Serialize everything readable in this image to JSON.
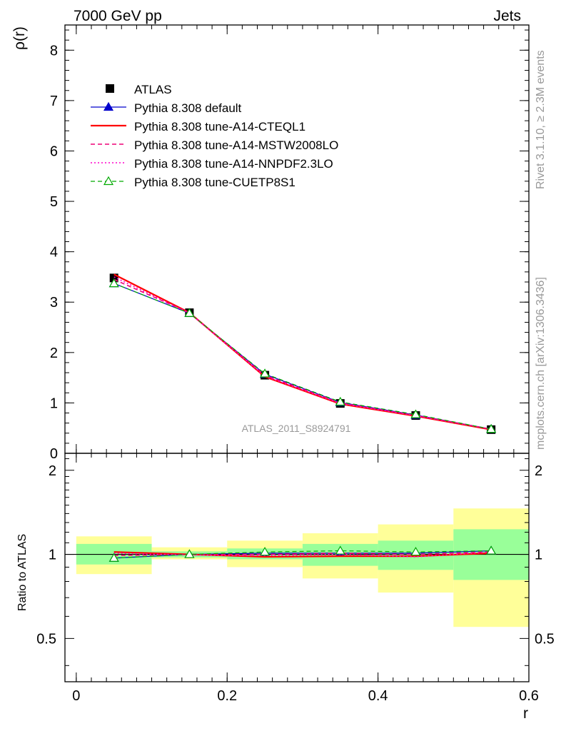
{
  "header": {
    "left_title": "7000 GeV pp",
    "right_title": "Jets"
  },
  "side_labels": {
    "rivet": "Rivet 3.1.10, ≥ 2.3M events",
    "mcplots": "mcplots.cern.ch [arXiv:1306.3436]"
  },
  "analysis_id": "ATLAS_2011_S8924791",
  "chart_data": [
    {
      "type": "line",
      "panel": "main",
      "ylabel": "ρ(r)",
      "ylim": [
        0,
        8.5
      ],
      "y_ticks": [
        0,
        1,
        2,
        3,
        4,
        5,
        6,
        7,
        8
      ],
      "y_tick_labels": [
        "0",
        "1",
        "2",
        "3",
        "4",
        "5",
        "6",
        "7",
        "8"
      ],
      "xlim": [
        -0.015,
        0.6
      ],
      "legend_position": "top-left",
      "x": [
        0.05,
        0.15,
        0.25,
        0.35,
        0.45,
        0.55
      ],
      "data": {
        "name": "ATLAS",
        "color": "#000000",
        "marker": "filled-square",
        "y": [
          3.48,
          2.79,
          1.55,
          0.99,
          0.75,
          0.47
        ]
      },
      "series": [
        {
          "name": "Pythia 8.308 default",
          "color": "#0000cc",
          "style": "solid",
          "width": 1.2,
          "marker": "filled-triangle",
          "y": [
            3.37,
            2.78,
            1.57,
            1.01,
            0.76,
            0.48
          ]
        },
        {
          "name": "Pythia 8.308 tune-A14-CTEQL1",
          "color": "#ff0000",
          "style": "solid",
          "width": 2.2,
          "marker": "none",
          "y": [
            3.55,
            2.79,
            1.52,
            0.98,
            0.74,
            0.47
          ]
        },
        {
          "name": "Pythia 8.308 tune-A14-MSTW2008LO",
          "color": "#ee0077",
          "style": "dashed",
          "width": 1.6,
          "marker": "none",
          "y": [
            3.45,
            2.79,
            1.55,
            1.0,
            0.75,
            0.48
          ]
        },
        {
          "name": "Pythia 8.308 tune-A14-NNPDF2.3LO",
          "color": "#ff00cc",
          "style": "dotted",
          "width": 1.6,
          "marker": "none",
          "y": [
            3.5,
            2.78,
            1.53,
            0.99,
            0.75,
            0.48
          ]
        },
        {
          "name": "Pythia 8.308 tune-CUETP8S1",
          "color": "#00aa00",
          "style": "dashed",
          "width": 1.2,
          "marker": "open-triangle",
          "y": [
            3.37,
            2.78,
            1.58,
            1.02,
            0.77,
            0.48
          ]
        }
      ]
    },
    {
      "type": "line",
      "panel": "ratio",
      "ylabel": "Ratio to ATLAS",
      "xlabel": "r",
      "ylim": [
        0.35,
        2.3
      ],
      "y_ticks": [
        0.5,
        1,
        2
      ],
      "y_tick_labels": [
        "0.5",
        "1",
        "2"
      ],
      "x_ticks": [
        0,
        0.2,
        0.4,
        0.6
      ],
      "x_tick_labels": [
        "0",
        "0.2",
        "0.4",
        "0.6"
      ],
      "uncertainty_bands": [
        {
          "x_low": 0.0,
          "x_high": 0.1,
          "inner": [
            0.92,
            1.09
          ],
          "outer": [
            0.85,
            1.16
          ]
        },
        {
          "x_low": 0.1,
          "x_high": 0.2,
          "inner": [
            0.975,
            1.025
          ],
          "outer": [
            0.96,
            1.06
          ]
        },
        {
          "x_low": 0.2,
          "x_high": 0.3,
          "inner": [
            0.96,
            1.05
          ],
          "outer": [
            0.9,
            1.12
          ]
        },
        {
          "x_low": 0.3,
          "x_high": 0.4,
          "inner": [
            0.91,
            1.09
          ],
          "outer": [
            0.82,
            1.19
          ]
        },
        {
          "x_low": 0.4,
          "x_high": 0.5,
          "inner": [
            0.88,
            1.12
          ],
          "outer": [
            0.73,
            1.28
          ]
        },
        {
          "x_low": 0.5,
          "x_high": 0.6,
          "inner": [
            0.81,
            1.23
          ],
          "outer": [
            0.55,
            1.46
          ]
        }
      ],
      "band_colors": {
        "inner": "#99ff99",
        "outer": "#ffff99"
      },
      "x": [
        0.05,
        0.15,
        0.25,
        0.35,
        0.45,
        0.55
      ],
      "series": [
        {
          "name": "Pythia 8.308 default",
          "y": [
            0.97,
            1.0,
            1.01,
            1.01,
            1.01,
            1.03
          ]
        },
        {
          "name": "Pythia 8.308 tune-A14-CTEQL1",
          "y": [
            1.02,
            1.0,
            0.98,
            0.985,
            0.985,
            1.01
          ]
        },
        {
          "name": "Pythia 8.308 tune-A14-MSTW2008LO",
          "y": [
            0.99,
            1.0,
            1.0,
            1.01,
            1.0,
            1.02
          ]
        },
        {
          "name": "Pythia 8.308 tune-A14-NNPDF2.3LO",
          "y": [
            1.01,
            0.995,
            0.99,
            1.0,
            0.98,
            1.02
          ]
        },
        {
          "name": "Pythia 8.308 tune-CUETP8S1",
          "y": [
            0.97,
            1.0,
            1.02,
            1.03,
            1.02,
            1.03
          ]
        }
      ]
    }
  ]
}
